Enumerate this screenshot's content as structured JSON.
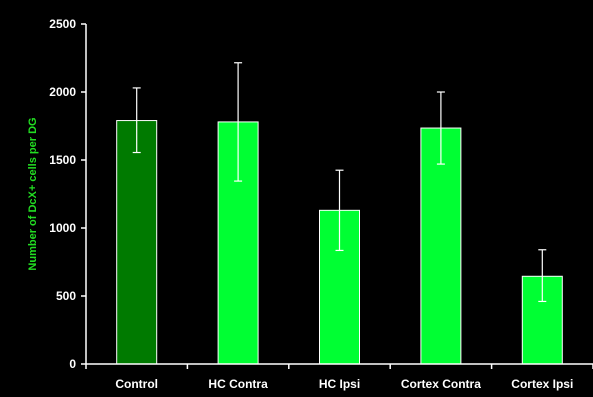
{
  "chart_data": {
    "type": "bar",
    "title": "",
    "xlabel": "",
    "ylabel": "Number of DcX+ cells per DG",
    "categories": [
      "Control",
      "HC Contra",
      "HC Ipsi",
      "Cortex Contra",
      "Cortex Ipsi"
    ],
    "values": [
      1790,
      1780,
      1130,
      1735,
      645
    ],
    "error_upper": [
      2030,
      2215,
      1425,
      2000,
      840
    ],
    "error_lower": [
      1555,
      1345,
      835,
      1470,
      460
    ],
    "ylim": [
      0,
      2500
    ],
    "yticks": [
      0,
      500,
      1000,
      1500,
      2000,
      2500
    ],
    "grid": false,
    "legend": "none",
    "colors": {
      "background": "#000000",
      "axis": "#ffffff",
      "ylabel": "#22dd22",
      "bar_control": "#007a00",
      "bar_default": "#00ff33",
      "bar_edge": "#ffffff",
      "error_bar": "#ffffff"
    }
  }
}
